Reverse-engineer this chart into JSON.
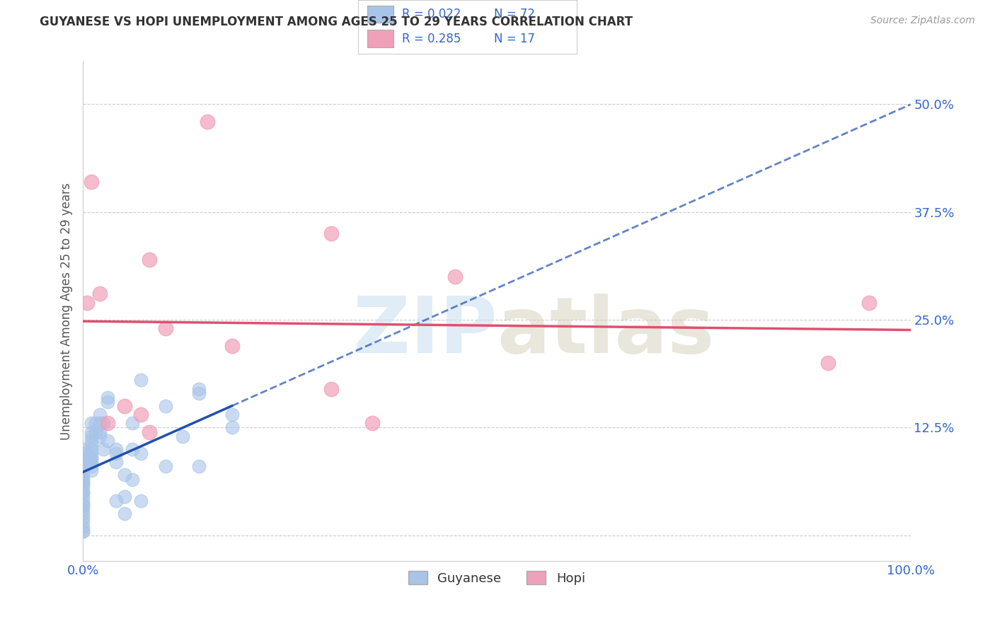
{
  "title": "GUYANESE VS HOPI UNEMPLOYMENT AMONG AGES 25 TO 29 YEARS CORRELATION CHART",
  "source": "Source: ZipAtlas.com",
  "ylabel": "Unemployment Among Ages 25 to 29 years",
  "xlim": [
    0.0,
    1.0
  ],
  "ylim": [
    -0.03,
    0.55
  ],
  "xticks": [
    0.0,
    0.1,
    0.2,
    0.3,
    0.4,
    0.5,
    0.6,
    0.7,
    0.8,
    0.9,
    1.0
  ],
  "xticklabels": [
    "0.0%",
    "",
    "",
    "",
    "",
    "",
    "",
    "",
    "",
    "",
    "100.0%"
  ],
  "yticks": [
    0.0,
    0.125,
    0.25,
    0.375,
    0.5
  ],
  "yticklabels": [
    "",
    "12.5%",
    "25.0%",
    "37.5%",
    "50.0%"
  ],
  "guyanese_color": "#a8c4e8",
  "hopi_color": "#f0a0b8",
  "trend_guyanese_color": "#2050b0",
  "trend_hopi_color": "#e05070",
  "background_color": "#ffffff",
  "grid_color": "#cccccc",
  "guyanese_x": [
    0.0,
    0.0,
    0.0,
    0.0,
    0.0,
    0.0,
    0.0,
    0.0,
    0.0,
    0.0,
    0.0,
    0.0,
    0.0,
    0.0,
    0.0,
    0.0,
    0.0,
    0.0,
    0.0,
    0.0,
    0.0,
    0.0,
    0.0,
    0.0,
    0.0,
    0.0,
    0.0,
    0.01,
    0.01,
    0.01,
    0.01,
    0.01,
    0.01,
    0.01,
    0.01,
    0.01,
    0.01,
    0.01,
    0.01,
    0.01,
    0.015,
    0.015,
    0.02,
    0.02,
    0.02,
    0.02,
    0.025,
    0.025,
    0.03,
    0.03,
    0.03,
    0.04,
    0.04,
    0.04,
    0.04,
    0.05,
    0.05,
    0.05,
    0.06,
    0.06,
    0.06,
    0.07,
    0.07,
    0.07,
    0.1,
    0.1,
    0.12,
    0.14,
    0.14,
    0.14,
    0.18,
    0.18
  ],
  "guyanese_y": [
    0.1,
    0.095,
    0.09,
    0.09,
    0.085,
    0.08,
    0.075,
    0.075,
    0.07,
    0.065,
    0.065,
    0.06,
    0.06,
    0.055,
    0.05,
    0.05,
    0.045,
    0.04,
    0.035,
    0.035,
    0.03,
    0.025,
    0.02,
    0.015,
    0.01,
    0.005,
    0.005,
    0.13,
    0.12,
    0.115,
    0.11,
    0.105,
    0.1,
    0.095,
    0.09,
    0.09,
    0.085,
    0.085,
    0.08,
    0.075,
    0.13,
    0.12,
    0.14,
    0.13,
    0.12,
    0.115,
    0.13,
    0.1,
    0.16,
    0.155,
    0.11,
    0.1,
    0.095,
    0.085,
    0.04,
    0.07,
    0.045,
    0.025,
    0.13,
    0.1,
    0.065,
    0.18,
    0.095,
    0.04,
    0.15,
    0.08,
    0.115,
    0.17,
    0.165,
    0.08,
    0.14,
    0.125
  ],
  "hopi_x": [
    0.005,
    0.01,
    0.02,
    0.03,
    0.05,
    0.07,
    0.08,
    0.08,
    0.1,
    0.15,
    0.18,
    0.3,
    0.3,
    0.35,
    0.45,
    0.9,
    0.95
  ],
  "hopi_y": [
    0.27,
    0.41,
    0.28,
    0.13,
    0.15,
    0.14,
    0.32,
    0.12,
    0.24,
    0.48,
    0.22,
    0.17,
    0.35,
    0.13,
    0.3,
    0.2,
    0.27
  ]
}
